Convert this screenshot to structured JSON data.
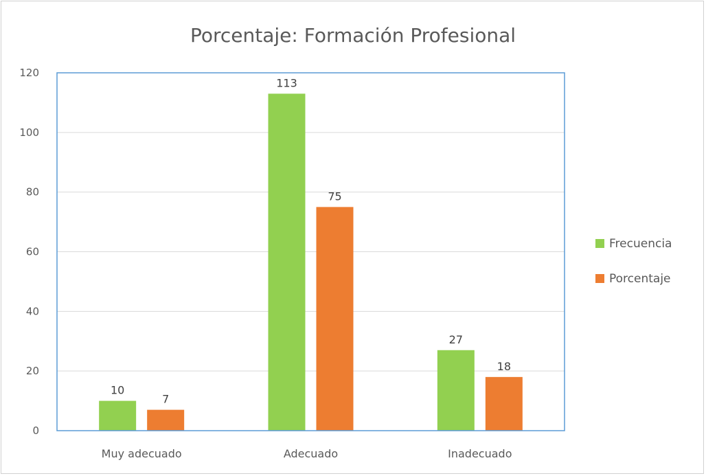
{
  "colors": {
    "frecuencia": "#92d050",
    "porcentaje": "#ed7d31",
    "plot_border": "#5b9bd5",
    "grid": "#d9d9d9"
  },
  "chart_data": {
    "type": "bar",
    "title": "Porcentaje: Formación Profesional",
    "categories": [
      "Muy adecuado",
      "Adecuado",
      "Inadecuado"
    ],
    "series": [
      {
        "name": "Frecuencia",
        "values": [
          10,
          113,
          27
        ]
      },
      {
        "name": "Porcentaje",
        "values": [
          7,
          75,
          18
        ]
      }
    ],
    "ylim": [
      0,
      120
    ],
    "yticks": [
      0,
      20,
      40,
      60,
      80,
      100,
      120
    ],
    "grid": true,
    "legend": "right"
  }
}
